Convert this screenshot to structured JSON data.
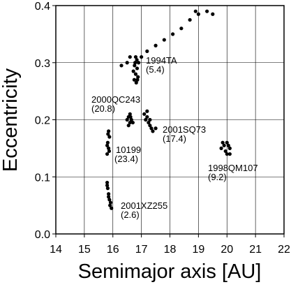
{
  "chart_data": {
    "type": "scatter",
    "xlabel": "Semimajor axis [AU]",
    "ylabel": "Eccentricity",
    "xlim": [
      14,
      22
    ],
    "ylim": [
      0,
      0.4
    ],
    "xticks": [
      14,
      15,
      16,
      17,
      18,
      19,
      20,
      21,
      22
    ],
    "yticks": [
      {
        "value": 0,
        "label": "0.0"
      },
      0.1,
      0.2,
      0.3,
      0.4
    ],
    "grid": true,
    "series": [
      {
        "color": "#000000",
        "x": [
          16.75,
          16.8,
          16.85,
          16.78,
          16.82,
          16.88,
          16.72,
          16.9,
          16.8,
          16.76,
          16.84,
          16.86,
          16.3,
          16.5,
          16.6,
          17.0,
          17.2,
          17.5,
          17.8,
          18.1,
          18.4,
          18.7,
          19.0,
          19.3,
          19.5,
          18.9,
          16.5,
          16.55,
          16.6,
          16.65,
          16.6,
          16.55,
          16.7,
          16.62,
          17.1,
          17.15,
          17.2,
          17.25,
          17.3,
          17.35,
          17.4,
          17.5,
          17.2,
          17.3,
          15.8,
          15.85,
          15.82,
          15.88,
          15.85,
          15.8,
          15.87,
          15.83,
          19.8,
          19.9,
          20.0,
          20.1,
          20.0,
          19.95,
          20.05,
          19.85,
          20.1,
          15.8,
          15.82,
          15.85,
          15.88,
          15.9,
          15.95,
          15.85,
          15.8,
          15.92
        ],
        "y": [
          0.27,
          0.28,
          0.29,
          0.3,
          0.265,
          0.275,
          0.285,
          0.3,
          0.31,
          0.295,
          0.305,
          0.27,
          0.295,
          0.3,
          0.31,
          0.31,
          0.32,
          0.33,
          0.34,
          0.35,
          0.36,
          0.375,
          0.385,
          0.39,
          0.385,
          0.39,
          0.2,
          0.205,
          0.195,
          0.2,
          0.21,
          0.19,
          0.195,
          0.205,
          0.21,
          0.2,
          0.215,
          0.195,
          0.19,
          0.185,
          0.18,
          0.185,
          0.205,
          0.2,
          0.14,
          0.15,
          0.16,
          0.17,
          0.18,
          0.155,
          0.145,
          0.175,
          0.15,
          0.155,
          0.16,
          0.15,
          0.14,
          0.145,
          0.155,
          0.16,
          0.14,
          0.09,
          0.08,
          0.07,
          0.06,
          0.05,
          0.045,
          0.065,
          0.085,
          0.055
        ]
      }
    ],
    "annotations": [
      {
        "text": "1994TA",
        "sub": "(5.4)"
      },
      {
        "text": "2000QC243",
        "sub": "(20.8)"
      },
      {
        "text": "2001SQ73",
        "sub": "(17.4)"
      },
      {
        "text": "10199",
        "sub": "(23.4)"
      },
      {
        "text": "1998QM107",
        "sub": "(9.2)"
      },
      {
        "text": "2001XZ255",
        "sub": "(2.6)"
      }
    ]
  }
}
